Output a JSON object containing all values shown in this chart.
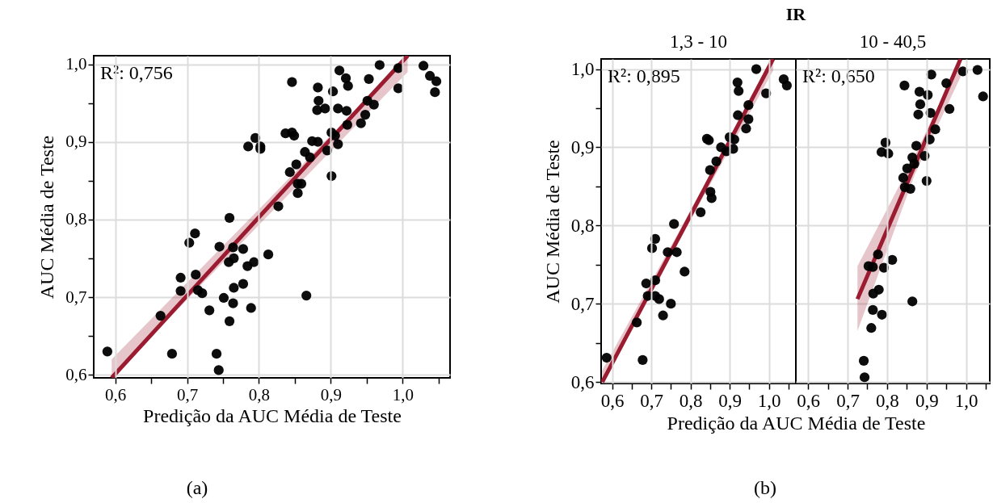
{
  "chart_data": [
    {
      "type": "scatter",
      "xlabel": "Predição da AUC Média de Teste",
      "ylabel": "AUC Média de Teste",
      "annotations": [
        "R²: 0,756",
        "(a)"
      ],
      "xlim": [
        0.57,
        1.066
      ],
      "ylim": [
        0.596,
        1.011
      ],
      "xticks": [
        {
          "value": 0.6,
          "label": "0,6"
        },
        {
          "value": 0.65,
          "label": null
        },
        {
          "value": 0.7,
          "label": "0,7"
        },
        {
          "value": 0.75,
          "label": null
        },
        {
          "value": 0.8,
          "label": "0,8"
        },
        {
          "value": 0.85,
          "label": null
        },
        {
          "value": 0.9,
          "label": "0,9"
        },
        {
          "value": 0.95,
          "label": null
        },
        {
          "value": 1.0,
          "label": "1,0"
        },
        {
          "value": 1.05,
          "label": null
        }
      ],
      "yticks": [
        {
          "value": 0.6,
          "label": "0,6"
        },
        {
          "value": 0.65,
          "label": null
        },
        {
          "value": 0.7,
          "label": "0,7"
        },
        {
          "value": 0.75,
          "label": null
        },
        {
          "value": 0.8,
          "label": "0,8"
        },
        {
          "value": 0.85,
          "label": null
        },
        {
          "value": 0.9,
          "label": "0,9"
        },
        {
          "value": 0.95,
          "label": null
        },
        {
          "value": 1.0,
          "label": "1,0"
        }
      ],
      "grid": true,
      "marker": "circle",
      "series": [
        {
          "type": "scatter",
          "color": "#000000",
          "x": [
            0.589,
            0.759,
            0.711,
            0.703,
            0.745,
            0.764,
            0.778,
            0.813,
            0.758,
            0.765,
            0.784,
            0.793,
            0.691,
            0.712,
            0.691,
            0.715,
            0.721,
            0.663,
            0.731,
            0.751,
            0.765,
            0.778,
            0.764,
            0.789,
            0.759,
            0.866,
            0.679,
            0.741,
            0.744,
            0.827,
            0.785,
            0.795,
            0.802,
            0.802,
            0.837,
            0.846,
            0.849,
            0.846,
            0.843,
            0.852,
            0.864,
            0.874,
            0.882,
            0.871,
            0.854,
            0.859,
            0.854,
            0.882,
            0.883,
            0.881,
            0.892,
            0.903,
            0.912,
            0.921,
            0.924,
            0.91,
            0.922,
            0.901,
            0.906,
            0.895,
            0.91,
            0.901,
            0.923,
            0.942,
            0.948,
            0.951,
            0.96,
            0.953,
            0.968,
            0.994,
            0.994,
            1.029,
            1.038,
            1.047,
            1.045
          ],
          "values": [
            0.63,
            0.802,
            0.782,
            0.77,
            0.765,
            0.764,
            0.762,
            0.755,
            0.745,
            0.75,
            0.74,
            0.745,
            0.725,
            0.729,
            0.708,
            0.709,
            0.705,
            0.676,
            0.683,
            0.699,
            0.712,
            0.717,
            0.692,
            0.686,
            0.669,
            0.702,
            0.627,
            0.627,
            0.606,
            0.817,
            0.894,
            0.905,
            0.894,
            0.891,
            0.911,
            0.912,
            0.908,
            0.977,
            0.861,
            0.871,
            0.887,
            0.901,
            0.9,
            0.88,
            0.846,
            0.846,
            0.834,
            0.97,
            0.953,
            0.941,
            0.943,
            0.965,
            0.992,
            0.982,
            0.972,
            0.943,
            0.94,
            0.912,
            0.908,
            0.889,
            0.897,
            0.856,
            0.922,
            0.924,
            0.935,
            0.953,
            0.948,
            0.981,
            0.999,
            0.995,
            0.969,
            0.998,
            0.985,
            0.978,
            0.964
          ]
        },
        {
          "type": "line",
          "marker": "none",
          "color": "#9b1b30",
          "x": [
            0.595,
            0.8,
            1.007
          ],
          "values": [
            0.596,
            0.803,
            1.011
          ],
          "lower": [
            0.596,
            0.793,
            0.99
          ],
          "upper": [
            0.62,
            0.813,
            1.011
          ]
        }
      ]
    },
    {
      "type": "scatter",
      "title": "IR",
      "subtitle": "1,3 - 10",
      "xlabel": "Predição da AUC Média de Teste",
      "ylabel": "AUC Média de Teste",
      "annotations": [
        "R²: 0,895",
        "(b)"
      ],
      "xlim": [
        0.572,
        1.069
      ],
      "ylim": [
        0.598,
        1.013
      ],
      "xticks": [
        {
          "value": 0.6,
          "label": "0,6"
        },
        {
          "value": 0.65,
          "label": null
        },
        {
          "value": 0.7,
          "label": "0,7"
        },
        {
          "value": 0.75,
          "label": null
        },
        {
          "value": 0.8,
          "label": "0,8"
        },
        {
          "value": 0.85,
          "label": null
        },
        {
          "value": 0.9,
          "label": "0,9"
        },
        {
          "value": 0.95,
          "label": null
        },
        {
          "value": 1.0,
          "label": "1,0"
        },
        {
          "value": 1.05,
          "label": null
        }
      ],
      "yticks": [
        {
          "value": 0.6,
          "label": "0,6"
        },
        {
          "value": 0.65,
          "label": null
        },
        {
          "value": 0.7,
          "label": "0,7"
        },
        {
          "value": 0.75,
          "label": null
        },
        {
          "value": 0.8,
          "label": "0,8"
        },
        {
          "value": 0.85,
          "label": null
        },
        {
          "value": 0.9,
          "label": "0,9"
        },
        {
          "value": 0.95,
          "label": null
        },
        {
          "value": 1.0,
          "label": "1,0"
        }
      ],
      "grid": true,
      "marker": "circle",
      "series": [
        {
          "type": "scatter",
          "color": "#000000",
          "x": [
            0.586,
            0.678,
            0.663,
            0.73,
            0.75,
            0.687,
            0.71,
            0.691,
            0.71,
            0.72,
            0.702,
            0.71,
            0.742,
            0.765,
            0.758,
            0.785,
            0.826,
            0.851,
            0.854,
            0.85,
            0.866,
            0.842,
            0.847,
            0.878,
            0.892,
            0.909,
            0.9,
            0.912,
            0.921,
            0.942,
            0.948,
            0.948,
            0.92,
            0.923,
            0.968,
            0.993,
            1.038,
            1.046
          ],
          "values": [
            0.631,
            0.628,
            0.676,
            0.685,
            0.7,
            0.726,
            0.73,
            0.71,
            0.71,
            0.706,
            0.771,
            0.783,
            0.766,
            0.766,
            0.802,
            0.741,
            0.817,
            0.843,
            0.835,
            0.871,
            0.882,
            0.911,
            0.909,
            0.9,
            0.895,
            0.898,
            0.913,
            0.91,
            0.941,
            0.924,
            0.936,
            0.954,
            0.983,
            0.972,
            1.0,
            0.969,
            0.987,
            0.979
          ]
        },
        {
          "type": "line",
          "marker": "none",
          "color": "#9b1b30",
          "x": [
            0.575,
            0.8,
            1.011
          ],
          "values": [
            0.6,
            0.813,
            1.013
          ],
          "lower": [
            0.598,
            0.807,
            0.998
          ],
          "upper": [
            0.615,
            0.819,
            1.013
          ]
        }
      ]
    },
    {
      "type": "scatter",
      "subtitle": "10 - 40,5",
      "annotations": [
        "R²: 0,650"
      ],
      "xlim": [
        0.569,
        1.06
      ],
      "ylim": [
        0.598,
        1.013
      ],
      "tick_labels": "x",
      "xticks": [
        {
          "value": 0.6,
          "label": "0,6"
        },
        {
          "value": 0.65,
          "label": null
        },
        {
          "value": 0.7,
          "label": "0,7"
        },
        {
          "value": 0.75,
          "label": null
        },
        {
          "value": 0.8,
          "label": "0,8"
        },
        {
          "value": 0.85,
          "label": null
        },
        {
          "value": 0.9,
          "label": "0,9"
        },
        {
          "value": 0.95,
          "label": null
        },
        {
          "value": 1.0,
          "label": "1,0"
        },
        {
          "value": 1.05,
          "label": null
        }
      ],
      "yticks": [
        0.6,
        0.7,
        0.8,
        0.9,
        1.0
      ],
      "grid": true,
      "marker": "circle",
      "series": [
        {
          "type": "scatter",
          "color": "#000000",
          "x": [
            0.844,
            0.912,
            0.882,
            0.903,
            0.884,
            0.879,
            0.91,
            0.95,
            0.958,
            0.992,
            1.029,
            1.043,
            0.922,
            0.908,
            0.796,
            0.786,
            0.803,
            0.874,
            0.864,
            0.895,
            0.851,
            0.869,
            0.841,
            0.845,
            0.859,
            0.9,
            0.777,
            0.813,
            0.753,
            0.764,
            0.792,
            0.779,
            0.765,
            0.864,
            0.764,
            0.787,
            0.76,
            0.741,
            0.743
          ],
          "values": [
            0.979,
            0.993,
            0.971,
            0.967,
            0.955,
            0.942,
            0.944,
            0.982,
            0.949,
            0.997,
            0.999,
            0.965,
            0.923,
            0.91,
            0.906,
            0.894,
            0.892,
            0.902,
            0.887,
            0.889,
            0.873,
            0.879,
            0.861,
            0.849,
            0.847,
            0.857,
            0.763,
            0.756,
            0.748,
            0.747,
            0.746,
            0.718,
            0.713,
            0.703,
            0.692,
            0.686,
            0.669,
            0.627,
            0.606
          ]
        },
        {
          "type": "line",
          "marker": "none",
          "color": "#9b1b30",
          "x": [
            0.725,
            0.87,
            0.986
          ],
          "values": [
            0.706,
            0.877,
            1.013
          ],
          "lower": [
            0.665,
            0.865,
            0.99
          ],
          "upper": [
            0.748,
            0.889,
            1.013
          ]
        }
      ]
    }
  ]
}
